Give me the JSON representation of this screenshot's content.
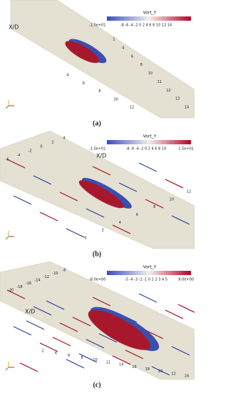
{
  "panels": [
    {
      "caption": "(a)",
      "colorbar": {
        "title": "Vort_Y",
        "labels": [
          "-1.5e+01",
          "-8 -6 -4 -2 0 2 4 6 8 10 12 14"
        ]
      },
      "axis_label": "X/D",
      "upper_ticks": [
        "2",
        "4",
        "6",
        "8",
        "10",
        "11",
        "12",
        "13",
        "14"
      ],
      "lower_ticks": [
        "4",
        "6",
        "8",
        "10",
        "12"
      ]
    },
    {
      "caption": "(b)",
      "colorbar": {
        "title": "Vort_Y",
        "labels": [
          "-1.5e+01",
          "-8 -6 -4 -2 0 2 4 6 8 10",
          "1.5e+01"
        ]
      },
      "axis_label": "X/D",
      "upper_ticks": [
        "-6",
        "-4",
        "-2",
        "0",
        "2",
        "4"
      ],
      "lower_ticks": [
        "0",
        "2",
        "4",
        "6",
        "8",
        "10",
        "12"
      ]
    },
    {
      "caption": "(c)",
      "colorbar": {
        "title": "Vort_Y",
        "labels": [
          "-8.0e+00",
          "-5 -4 -3 -2 -1 0 1 2 3 4 5",
          "8.0e+00"
        ]
      },
      "axis_label": "X/D",
      "upper_ticks": [
        "-20",
        "-18",
        "-16",
        "-14",
        "-12",
        "-10",
        "-8"
      ],
      "lower_ticks": [
        "2",
        "4",
        "6",
        "8",
        "10",
        "12",
        "14",
        "16",
        "18",
        "20",
        "22",
        "24"
      ]
    }
  ]
}
